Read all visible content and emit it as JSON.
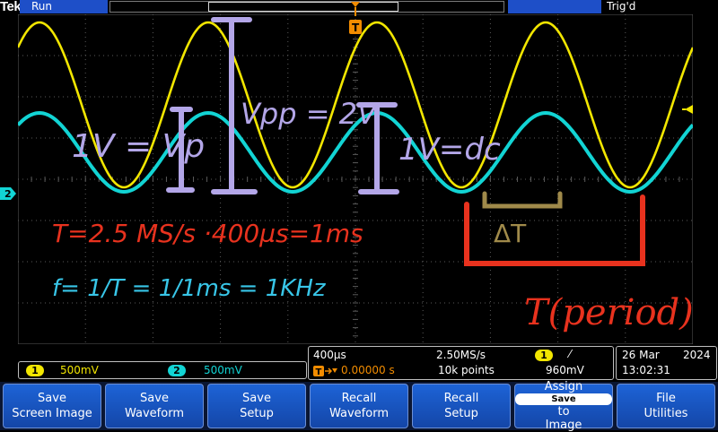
{
  "header": {
    "brand": "Tek",
    "acq_state": "Run",
    "trigger_status": "Trig'd",
    "trigger_position_glyph": "T"
  },
  "channels": [
    {
      "number": "1",
      "scale": "500mV",
      "color": "#f2e600"
    },
    {
      "number": "2",
      "scale": "500mV",
      "color": "#12d4d4"
    }
  ],
  "horizontal": {
    "time_per_div": "400µs",
    "sample_rate": "2.50MS/s",
    "delay": "0.00000 s",
    "record_length": "10k points"
  },
  "trigger": {
    "source": "1",
    "slope": "⁄",
    "level": "960mV"
  },
  "datetime": {
    "date": "26 Mar",
    "year": "2024",
    "time": "13:02:31"
  },
  "softkeys": [
    {
      "line1": "Save",
      "line2": "Screen Image"
    },
    {
      "line1": "Save",
      "line2": "Waveform"
    },
    {
      "line1": "Save",
      "line2": "Setup"
    },
    {
      "line1": "Recall",
      "line2": "Waveform"
    },
    {
      "line1": "Recall",
      "line2": "Setup"
    },
    {
      "line1": "Assign",
      "chip": "Save",
      "line2": "to",
      "line3": "Image"
    },
    {
      "line1": "File",
      "line2": "Utilities"
    }
  ],
  "annotations": {
    "amplitude": "1V = Vp",
    "vpp": "Vpp = 2V",
    "offset": "1V=dc",
    "period_calc": "T=2.5 MS/s ·400µs=1ms",
    "freq_calc": "f= 1/T = 1/1ms = 1KHz",
    "delta_t": "ΔT",
    "period_label": "T(period)"
  },
  "colors": {
    "ch1": "#f2e600",
    "ch2": "#12d4d4",
    "graticule": "#5a5a5a",
    "annotation_purple": "#b3a6e8",
    "annotation_red": "#e8321e",
    "annotation_cyan": "#38c6e8",
    "annotation_olive": "#a08a4a",
    "softkey": "#1a56c4"
  }
}
